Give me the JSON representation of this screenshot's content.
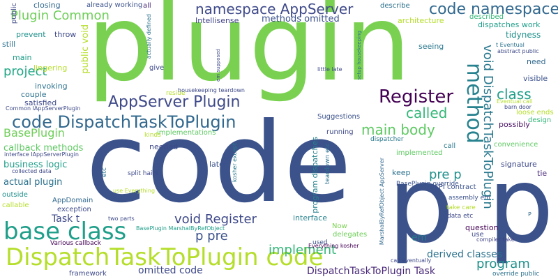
{
  "title": "word cloud",
  "words": [
    {
      "text": "plugin",
      "color": "#7ad151"
    },
    {
      "text": "code",
      "color": "#3b528b"
    },
    {
      "text": "p p",
      "color": "#3b528b"
    },
    {
      "text": "base class",
      "color": "#1f9e89"
    },
    {
      "text": "DispatchTaskToPlugin code",
      "color": "#b5de2b"
    },
    {
      "text": "code DispatchTaskToPlugin",
      "color": "#31688e"
    },
    {
      "text": "code namespace",
      "color": "#31688e"
    },
    {
      "text": "namespace AppServer",
      "color": "#3e4989"
    },
    {
      "text": "AppServer Plugin",
      "color": "#3e4989"
    },
    {
      "text": "Register",
      "color": "#440154"
    },
    {
      "text": "method",
      "color": "#26828e"
    },
    {
      "text": "void DispatchTaskToPlugin",
      "color": "#2a788e"
    },
    {
      "text": "called",
      "color": "#35b779"
    },
    {
      "text": "class",
      "color": "#1f9e89"
    },
    {
      "text": "main body",
      "color": "#5ec962"
    },
    {
      "text": "Plugin Common",
      "color": "#6ece58"
    },
    {
      "text": "project",
      "color": "#21a685"
    },
    {
      "text": "BasePlugin",
      "color": "#6ece58"
    },
    {
      "text": "void Register",
      "color": "#3e4989"
    },
    {
      "text": "p pre",
      "color": "#3b528b"
    },
    {
      "text": "pre p",
      "color": "#21918c"
    },
    {
      "text": "program",
      "color": "#21918c"
    },
    {
      "text": "implement",
      "color": "#35b779"
    },
    {
      "text": "DispatchTaskToPlugin Task",
      "color": "#482878"
    },
    {
      "text": "derived classes",
      "color": "#2c728e"
    },
    {
      "text": "omitted code",
      "color": "#3e4989"
    },
    {
      "text": "callback methods",
      "color": "#5ec962"
    },
    {
      "text": "business logic",
      "color": "#1f9e89"
    },
    {
      "text": "actual plugin",
      "color": "#2c728e"
    },
    {
      "text": "methods omitted",
      "color": "#3b528b"
    },
    {
      "text": "Intellisense",
      "color": "#414487"
    },
    {
      "text": "public void",
      "color": "#b5de2b"
    },
    {
      "text": "already working",
      "color": "#3b528b"
    },
    {
      "text": "closing",
      "color": "#31688e"
    },
    {
      "text": "all",
      "color": "#482878"
    },
    {
      "text": "describe",
      "color": "#2c728e"
    },
    {
      "text": "dispatches work",
      "color": "#1f9e89"
    },
    {
      "text": "architecture",
      "color": "#b5de2b"
    },
    {
      "text": "described",
      "color": "#35b779"
    },
    {
      "text": "tidyness",
      "color": "#21918c"
    },
    {
      "text": "seeing",
      "color": "#2a788e"
    },
    {
      "text": "need",
      "color": "#31688e"
    },
    {
      "text": "visible",
      "color": "#3b528b"
    },
    {
      "text": "possibly",
      "color": "#471063"
    },
    {
      "text": "loose ends",
      "color": "#b5de2b"
    },
    {
      "text": "design",
      "color": "#35b779"
    },
    {
      "text": "convenience",
      "color": "#5ec962"
    },
    {
      "text": "signature",
      "color": "#3e4989"
    },
    {
      "text": "tie",
      "color": "#482878"
    },
    {
      "text": "API contract",
      "color": "#3b528b"
    },
    {
      "text": "question",
      "color": "#440154"
    },
    {
      "text": "use",
      "color": "#3e4989"
    },
    {
      "text": "em",
      "color": "#2a788e"
    },
    {
      "text": "keep",
      "color": "#2c728e"
    },
    {
      "text": "call",
      "color": "#2a788e"
    },
    {
      "text": "Now",
      "color": "#7ad151"
    },
    {
      "text": "delegates",
      "color": "#6ece58"
    },
    {
      "text": "interface",
      "color": "#26828e"
    },
    {
      "text": "used",
      "color": "#3b528b"
    },
    {
      "text": "Everything kosher",
      "color": "#440154"
    },
    {
      "text": "running",
      "color": "#3e4989"
    },
    {
      "text": "dispatcher",
      "color": "#2a788e"
    },
    {
      "text": "implemented",
      "color": "#5ec962"
    },
    {
      "text": "Suggestions",
      "color": "#3b528b"
    },
    {
      "text": "program dispatches",
      "color": "#26828e"
    },
    {
      "text": "teardown etc",
      "color": "#2c728e"
    },
    {
      "text": "kosher except",
      "color": "#2a788e"
    },
    {
      "text": "MarshalByRefObject AppServer",
      "color": "#31688e"
    },
    {
      "text": "BasePlugin override",
      "color": "#3b528b"
    },
    {
      "text": "assembly em",
      "color": "#3b528b"
    },
    {
      "text": "take care",
      "color": "#b5de2b"
    },
    {
      "text": "data etc",
      "color": "#3e4989"
    },
    {
      "text": "compiler take",
      "color": "#414487"
    },
    {
      "text": "call eventually",
      "color": "#3e4989"
    },
    {
      "text": "override public",
      "color": "#2c728e"
    },
    {
      "text": "needed",
      "color": "#3e4989"
    },
    {
      "text": "later",
      "color": "#3b528b"
    },
    {
      "text": "split hairs",
      "color": "#3e4989"
    },
    {
      "text": "implementations",
      "color": "#5ec962"
    },
    {
      "text": "kinds",
      "color": "#b5de2b"
    },
    {
      "text": "reside",
      "color": "#b5de2b"
    },
    {
      "text": "housekeeping teardown",
      "color": "#3e4989"
    },
    {
      "text": "setup housekeeping",
      "color": "#2c728e"
    },
    {
      "text": "little late",
      "color": "#3e4989"
    },
    {
      "text": "em supposed",
      "color": "#3e4989"
    },
    {
      "text": "give",
      "color": "#3e4989"
    },
    {
      "text": "actually defined",
      "color": "#2c728e"
    },
    {
      "text": "satisfied",
      "color": "#3e4989"
    },
    {
      "text": "couple",
      "color": "#2c728e"
    },
    {
      "text": "invoking",
      "color": "#2c728e"
    },
    {
      "text": "lingering",
      "color": "#b5de2b"
    },
    {
      "text": "prevent",
      "color": "#21918c"
    },
    {
      "text": "throw",
      "color": "#3e4989"
    },
    {
      "text": "still",
      "color": "#2c728e"
    },
    {
      "text": "main",
      "color": "#1f9e89"
    },
    {
      "text": "public",
      "color": "#3e4989"
    },
    {
      "text": "Common IAppServerPlugin",
      "color": "#3e4989"
    },
    {
      "text": "interface IAppServerPlugin",
      "color": "#3e4989"
    },
    {
      "text": "collected data",
      "color": "#3e4989"
    },
    {
      "text": "outside",
      "color": "#21918c"
    },
    {
      "text": "callable",
      "color": "#b5de2b"
    },
    {
      "text": "AppDomain",
      "color": "#31688e"
    },
    {
      "text": "exception",
      "color": "#3e4989"
    },
    {
      "text": "Task t",
      "color": "#3e4989"
    },
    {
      "text": "etc",
      "color": "#2c728e"
    },
    {
      "text": "use Everything",
      "color": "#b5de2b"
    },
    {
      "text": "two parts",
      "color": "#3e4989"
    },
    {
      "text": "BasePlugin MarshalByRefObject",
      "color": "#1f9e89"
    },
    {
      "text": "Various callback",
      "color": "#440154"
    },
    {
      "text": "framework",
      "color": "#3e4989"
    },
    {
      "text": "t Eventual",
      "color": "#2c728e"
    },
    {
      "text": "abstract public",
      "color": "#3e4989"
    },
    {
      "text": "Eventual call",
      "color": "#b5de2b"
    },
    {
      "text": "barn door",
      "color": "#3e4989"
    },
    {
      "text": "P",
      "color": "#31688e"
    }
  ]
}
